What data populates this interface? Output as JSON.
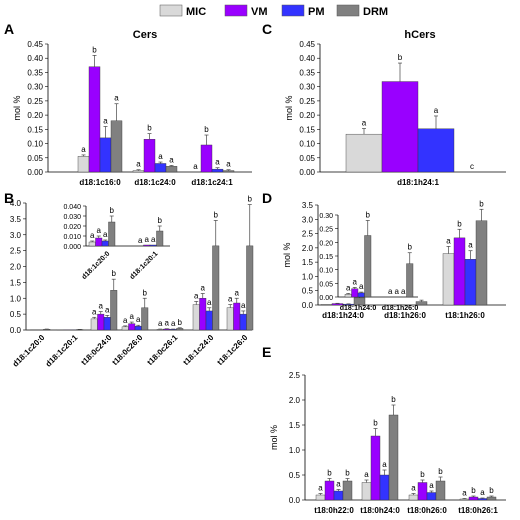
{
  "legend": [
    {
      "label": "MIC",
      "color": "#d9d9d9"
    },
    {
      "label": "VM",
      "color": "#9900ff"
    },
    {
      "label": "PM",
      "color": "#3333ff"
    },
    {
      "label": "DRM",
      "color": "#808080"
    }
  ],
  "chart_data": [
    {
      "panel": "A",
      "title": "Cers",
      "type": "bar",
      "ylabel": "mol %",
      "ylim": [
        0,
        0.45
      ],
      "yticks": [
        "0.00",
        "0.05",
        "0.10",
        "0.15",
        "0.20",
        "0.25",
        "0.30",
        "0.35",
        "0.40",
        "0.45"
      ],
      "categories": [
        "d18:1c16:0",
        "d18:1c24:0",
        "d18:1c24:1"
      ],
      "series": [
        {
          "name": "MIC",
          "values": [
            0.055,
            0.005,
            0.0
          ],
          "errors": [
            0.005,
            0.003,
            0.0
          ],
          "letters": [
            "a",
            "a",
            "a"
          ]
        },
        {
          "name": "VM",
          "values": [
            0.37,
            0.115,
            0.095
          ],
          "errors": [
            0.04,
            0.02,
            0.035
          ],
          "letters": [
            "b",
            "b",
            "b"
          ]
        },
        {
          "name": "PM",
          "values": [
            0.12,
            0.03,
            0.01
          ],
          "errors": [
            0.04,
            0.005,
            0.005
          ],
          "letters": [
            "a",
            "a",
            "a"
          ]
        },
        {
          "name": "DRM",
          "values": [
            0.18,
            0.02,
            0.005
          ],
          "errors": [
            0.06,
            0.003,
            0.003
          ],
          "letters": [
            "a",
            "a",
            "a"
          ]
        }
      ]
    },
    {
      "panel": "C",
      "title": "hCers",
      "type": "bar",
      "ylabel": "mol %",
      "ylim": [
        0,
        0.45
      ],
      "yticks": [
        "0.00",
        "0.05",
        "0.10",
        "0.15",
        "0.20",
        "0.25",
        "0.30",
        "0.35",
        "0.40",
        "0.45"
      ],
      "categories": [
        "d18:1h24:1"
      ],
      "series": [
        {
          "name": "MIC",
          "values": [
            0.133
          ],
          "errors": [
            0.02
          ],
          "letters": [
            "a"
          ]
        },
        {
          "name": "VM",
          "values": [
            0.318
          ],
          "errors": [
            0.065
          ],
          "letters": [
            "b"
          ]
        },
        {
          "name": "PM",
          "values": [
            0.152
          ],
          "errors": [
            0.045
          ],
          "letters": [
            "a"
          ]
        },
        {
          "name": "DRM",
          "values": [
            0.0
          ],
          "errors": [
            0.0
          ],
          "letters": [
            "c"
          ]
        }
      ]
    },
    {
      "panel": "B",
      "type": "bar",
      "ylabel": "mol %",
      "ylim": [
        0,
        4.0
      ],
      "yticks": [
        "0.0",
        "0.5",
        "1.0",
        "1.5",
        "2.0",
        "2.5",
        "3.0",
        "3.5",
        "4.0"
      ],
      "categories": [
        "d18:1c20:0",
        "d18:1c20:1",
        "t18:0c24:0",
        "t18:0c26:0",
        "t18:0c26:1",
        "t18:1c24:0",
        "t18:1c26:0"
      ],
      "series": [
        {
          "name": "MIC",
          "values": [
            0.005,
            0.003,
            0.35,
            0.1,
            0.02,
            0.8,
            0.7
          ],
          "errors": [
            0.0,
            0.0,
            0.05,
            0.03,
            0.01,
            0.1,
            0.1
          ],
          "letters": [
            "",
            "",
            "a",
            "a",
            "a",
            "a",
            "a"
          ]
        },
        {
          "name": "VM",
          "values": [
            0.008,
            0.003,
            0.5,
            0.2,
            0.03,
            1.0,
            0.85
          ],
          "errors": [
            0.0,
            0.0,
            0.08,
            0.05,
            0.01,
            0.15,
            0.15
          ],
          "letters": [
            "",
            "",
            "a",
            "a",
            "a",
            "a",
            "a"
          ]
        },
        {
          "name": "PM",
          "values": [
            0.007,
            0.003,
            0.4,
            0.12,
            0.02,
            0.6,
            0.5
          ],
          "errors": [
            0.0,
            0.0,
            0.06,
            0.03,
            0.01,
            0.1,
            0.1
          ],
          "letters": [
            "",
            "",
            "a",
            "a",
            "a",
            "a",
            "a"
          ]
        },
        {
          "name": "DRM",
          "values": [
            0.025,
            0.015,
            1.25,
            0.7,
            0.05,
            2.65,
            2.65
          ],
          "errors": [
            0.005,
            0.005,
            0.35,
            0.3,
            0.02,
            0.8,
            1.3
          ],
          "letters": [
            "",
            "",
            "b",
            "b",
            "b",
            "b",
            "b"
          ]
        }
      ],
      "inset": {
        "ylim": [
          0,
          0.04
        ],
        "yticks": [
          "0.000",
          "0.010",
          "0.020",
          "0.030",
          "0.040"
        ],
        "categories": [
          "d18:1c20:0",
          "d18:1c20:1"
        ],
        "series": [
          {
            "name": "MIC",
            "values": [
              0.004,
              0.0
            ],
            "errors": [
              0.001,
              0.0
            ],
            "letters": [
              "a",
              "a"
            ]
          },
          {
            "name": "VM",
            "values": [
              0.008,
              0.001
            ],
            "errors": [
              0.002,
              0.0
            ],
            "letters": [
              "a",
              "a"
            ]
          },
          {
            "name": "PM",
            "values": [
              0.005,
              0.001
            ],
            "errors": [
              0.001,
              0.0
            ],
            "letters": [
              "a",
              "a"
            ]
          },
          {
            "name": "DRM",
            "values": [
              0.024,
              0.015
            ],
            "errors": [
              0.006,
              0.005
            ],
            "letters": [
              "b",
              "b"
            ]
          }
        ]
      }
    },
    {
      "panel": "D",
      "type": "bar",
      "ylabel": "mol %",
      "ylim": [
        0,
        3.5
      ],
      "yticks": [
        "0.0",
        "0.5",
        "1.0",
        "1.5",
        "2.0",
        "2.5",
        "3.0",
        "3.5"
      ],
      "categories": [
        "d18:1h24:0",
        "d18:1h26:0",
        "t18:1h26:0"
      ],
      "series": [
        {
          "name": "MIC",
          "values": [
            0.02,
            0.0,
            1.8
          ],
          "errors": [
            0.0,
            0.0,
            0.25
          ],
          "letters": [
            "",
            "",
            "a"
          ]
        },
        {
          "name": "VM",
          "values": [
            0.05,
            0.01,
            2.35
          ],
          "errors": [
            0.01,
            0.0,
            0.3
          ],
          "letters": [
            "",
            "",
            "b"
          ]
        },
        {
          "name": "PM",
          "values": [
            0.03,
            0.0,
            1.6
          ],
          "errors": [
            0.01,
            0.0,
            0.3
          ],
          "letters": [
            "",
            "",
            "a"
          ]
        },
        {
          "name": "DRM",
          "values": [
            0.25,
            0.12,
            2.95
          ],
          "errors": [
            0.1,
            0.05,
            0.4
          ],
          "letters": [
            "",
            "",
            "b"
          ]
        }
      ],
      "inset": {
        "ylim": [
          0,
          0.3
        ],
        "yticks": [
          "0.00",
          "0.05",
          "0.10",
          "0.15",
          "0.20",
          "0.25",
          "0.30"
        ],
        "categories": [
          "d18:1h24:0",
          "d18:1h26:0"
        ],
        "series": [
          {
            "name": "MIC",
            "values": [
              0.01,
              0.0
            ],
            "errors": [
              0.003,
              0.0
            ],
            "letters": [
              "a",
              "a"
            ]
          },
          {
            "name": "VM",
            "values": [
              0.03,
              0.0
            ],
            "errors": [
              0.005,
              0.0
            ],
            "letters": [
              "a",
              "a"
            ]
          },
          {
            "name": "PM",
            "values": [
              0.015,
              0.0
            ],
            "errors": [
              0.003,
              0.0
            ],
            "letters": [
              "a",
              "a"
            ]
          },
          {
            "name": "DRM",
            "values": [
              0.225,
              0.122
            ],
            "errors": [
              0.055,
              0.04
            ],
            "letters": [
              "b",
              "b"
            ]
          }
        ]
      }
    },
    {
      "panel": "E",
      "type": "bar",
      "ylabel": "mol %",
      "ylim": [
        0,
        2.5
      ],
      "yticks": [
        "0.0",
        "0.5",
        "1.0",
        "1.5",
        "2.0",
        "2.5"
      ],
      "categories": [
        "t18:0h22:0",
        "t18:0h24:0",
        "t18:0h26:0",
        "t18:0h26:1"
      ],
      "series": [
        {
          "name": "MIC",
          "values": [
            0.1,
            0.35,
            0.1,
            0.02
          ],
          "errors": [
            0.03,
            0.05,
            0.03,
            0.01
          ],
          "letters": [
            "a",
            "a",
            "a",
            "a"
          ]
        },
        {
          "name": "VM",
          "values": [
            0.38,
            1.28,
            0.35,
            0.06
          ],
          "errors": [
            0.05,
            0.15,
            0.05,
            0.02
          ],
          "letters": [
            "b",
            "b",
            "b",
            "b"
          ]
        },
        {
          "name": "PM",
          "values": [
            0.18,
            0.5,
            0.15,
            0.03
          ],
          "errors": [
            0.03,
            0.1,
            0.03,
            0.01
          ],
          "letters": [
            "a",
            "a",
            "a",
            "a"
          ]
        },
        {
          "name": "DRM",
          "values": [
            0.38,
            1.7,
            0.38,
            0.06
          ],
          "errors": [
            0.05,
            0.2,
            0.08,
            0.02
          ],
          "letters": [
            "b",
            "b",
            "b",
            "b"
          ]
        }
      ]
    }
  ]
}
